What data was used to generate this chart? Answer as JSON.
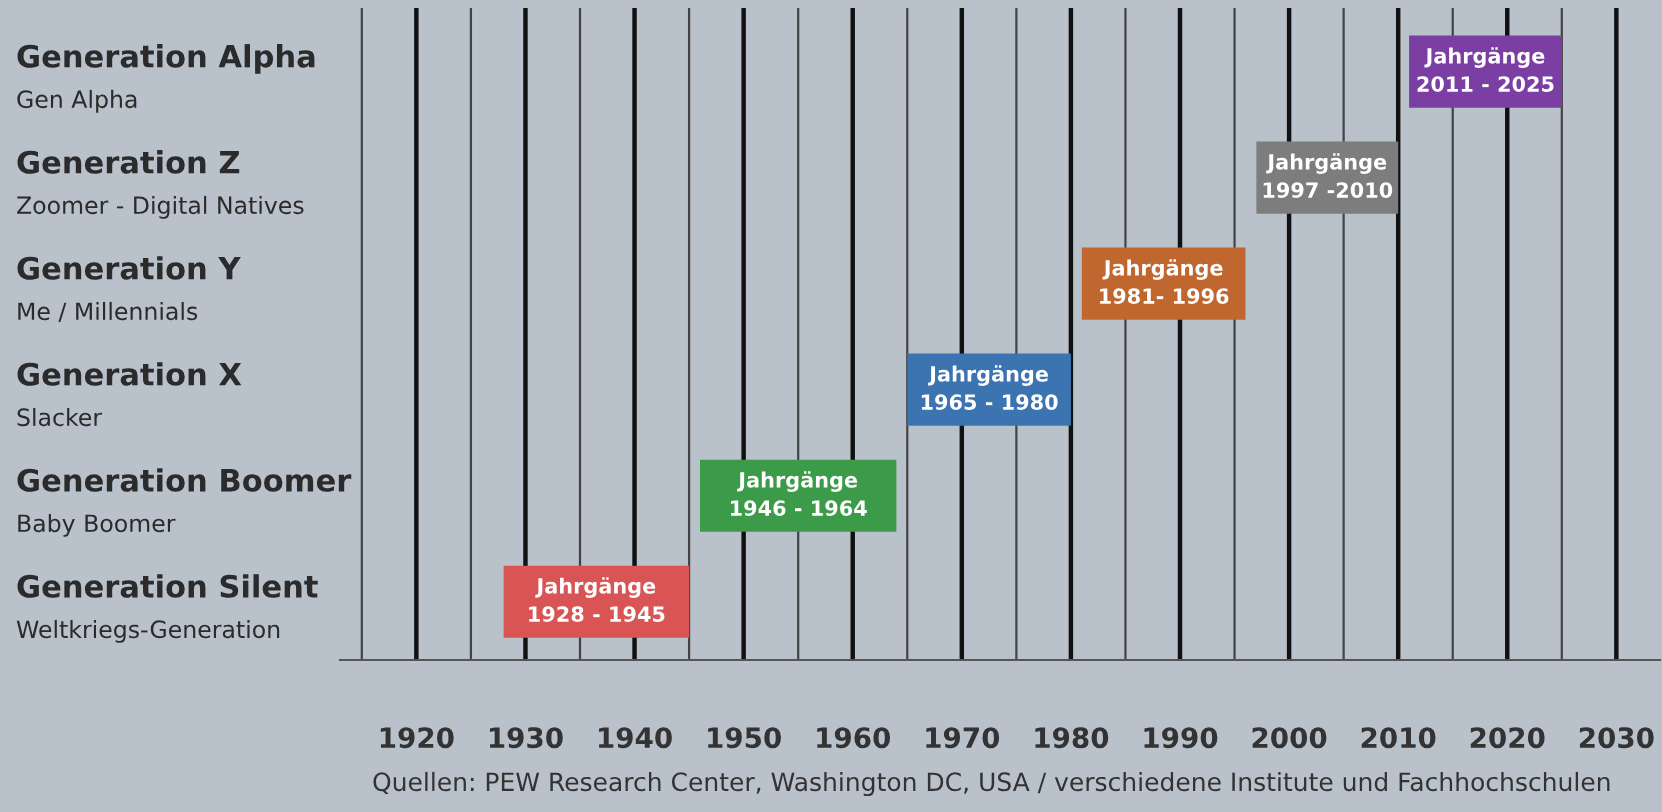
{
  "chart_data": {
    "type": "bar",
    "orientation": "horizontal",
    "categories": [
      "Generation Alpha\nGen Alpha",
      "Generation Z\nZoomer - Digital Natives",
      "Generation Y\nMe / Millennials",
      "Generation X\nSlacker",
      "Generation Boomer\nBaby Boomer",
      "Generation Silent\nWeltkriegs-Generation"
    ],
    "base": [
      2011,
      1997,
      1981,
      1965,
      1946,
      1928
    ],
    "values": [
      14,
      13,
      15,
      15,
      18,
      17
    ],
    "colors": [
      "#7b3fa3",
      "#7d7d7d",
      "#c0672f",
      "#3b74b1",
      "#3c9b49",
      "#d95454"
    ],
    "value_labels": [
      "Jahrgänge\n2011 - 2025",
      "Jahrgänge\n1997 -2010",
      "Jahrgänge\n1981- 1996",
      "Jahrgänge\n1965 - 1980",
      "Jahrgänge\n1946 - 1964",
      "Jahrgänge\n1928 - 1945"
    ],
    "xlim": [
      1913,
      2034
    ],
    "xticks": [
      {
        "value": 1915,
        "label": null
      },
      1920,
      {
        "value": 1925,
        "label": null
      },
      1930,
      {
        "value": 1935,
        "label": null
      },
      1940,
      {
        "value": 1945,
        "label": null
      },
      1950,
      {
        "value": 1955,
        "label": null
      },
      1960,
      {
        "value": 1965,
        "label": null
      },
      1970,
      {
        "value": 1975,
        "label": null
      },
      1980,
      {
        "value": 1985,
        "label": null
      },
      1990,
      {
        "value": 1995,
        "label": null
      },
      2000,
      {
        "value": 2005,
        "label": null
      },
      2010,
      {
        "value": 2015,
        "label": null
      },
      2020,
      {
        "value": 2025,
        "label": null
      },
      2030
    ],
    "grid": "x",
    "annotations": [
      "Quellen: PEW Research Center, Washington DC, USA / verschiedene Institute und Fachhochschulen"
    ]
  }
}
